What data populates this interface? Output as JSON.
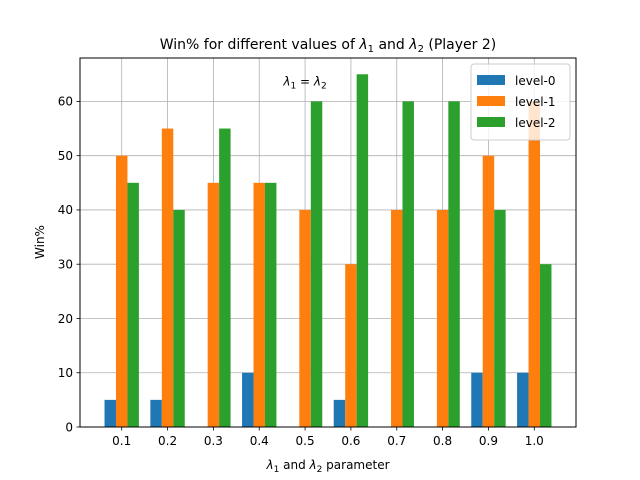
{
  "chart_data": {
    "type": "bar",
    "title_parts": {
      "prefix": "Win% for different values of ",
      "lambda": "λ",
      "sub1": "1",
      "and": " and ",
      "sub2": "2",
      "suffix": " (Player 2)"
    },
    "xlabel_parts": {
      "lambda": "λ",
      "sub1": "1",
      "and": " and ",
      "sub2": "2",
      "suffix": " parameter"
    },
    "ylabel": "Win%",
    "categories": [
      "0.1",
      "0.2",
      "0.3",
      "0.4",
      "0.5",
      "0.6",
      "0.7",
      "0.8",
      "0.9",
      "1.0"
    ],
    "series": [
      {
        "name": "level-0",
        "color": "#1f77b4",
        "values": [
          5,
          5,
          0,
          10,
          0,
          5,
          0,
          0,
          10,
          10
        ]
      },
      {
        "name": "level-1",
        "color": "#ff7f0e",
        "values": [
          50,
          55,
          45,
          45,
          40,
          30,
          40,
          40,
          50,
          60
        ]
      },
      {
        "name": "level-2",
        "color": "#2ca02c",
        "values": [
          45,
          40,
          55,
          45,
          60,
          65,
          60,
          60,
          40,
          30
        ]
      }
    ],
    "ylim": [
      0,
      68
    ],
    "yticks": [
      0,
      10,
      20,
      30,
      40,
      50,
      60
    ],
    "grid": true,
    "legend_position": "top-right",
    "annotation": {
      "parts": {
        "lambda": "λ",
        "sub1": "1",
        "eq": " = ",
        "sub2": "2"
      },
      "category": "0.5",
      "y": 62
    }
  }
}
